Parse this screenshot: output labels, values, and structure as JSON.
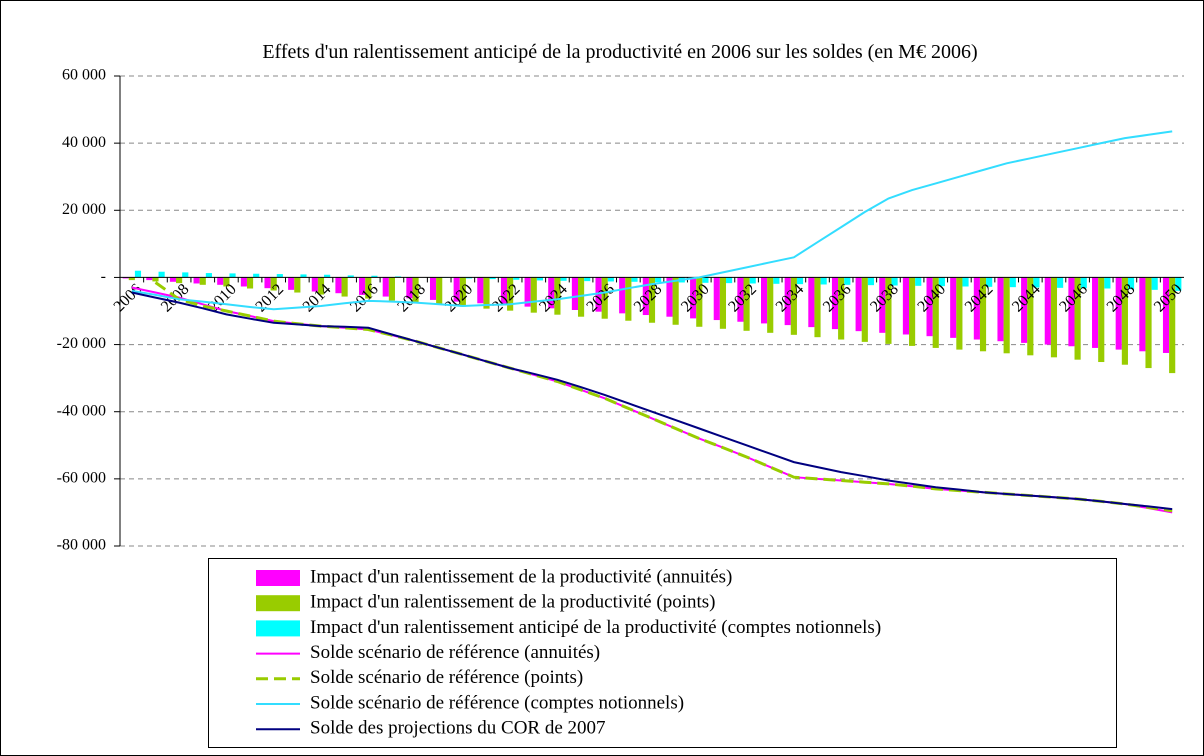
{
  "chart_data": {
    "type": "bar",
    "title": "Effets d'un ralentissement anticipé de la productivité en 2006 sur les soldes (en M€ 2006)",
    "categories": [
      "2006",
      null,
      "2008",
      null,
      "2010",
      null,
      "2012",
      null,
      "2014",
      null,
      "2016",
      null,
      "2018",
      null,
      "2020",
      null,
      "2022",
      null,
      "2024",
      null,
      "2026",
      null,
      "2028",
      null,
      "2030",
      null,
      "2032",
      null,
      "2034",
      null,
      "2036",
      null,
      "2038",
      null,
      "2040",
      null,
      "2042",
      null,
      "2044",
      null,
      "2046",
      null,
      "2048",
      null,
      "2050"
    ],
    "ylim": [
      -80000,
      60000
    ],
    "yticks": [
      {
        "value": -80000,
        "label": "-80 000"
      },
      {
        "value": -60000,
        "label": "-60 000"
      },
      {
        "value": -40000,
        "label": "-40 000"
      },
      {
        "value": -20000,
        "label": "-20 000"
      },
      {
        "value": 0,
        "label": "-"
      },
      {
        "value": 20000,
        "label": "20 000"
      },
      {
        "value": 40000,
        "label": "40 000"
      },
      {
        "value": 60000,
        "label": "60 000"
      }
    ],
    "grid": true,
    "legend": "bottom",
    "series": [
      {
        "name": "Impact d'un ralentissement de la productivité (annuités)",
        "type": "bar",
        "color": "#ff00ff",
        "values": [
          -300,
          -800,
          -1300,
          -1800,
          -2200,
          -2700,
          -3200,
          -3700,
          -4200,
          -4700,
          -5200,
          -5700,
          -6200,
          -6700,
          -7200,
          -7700,
          -8200,
          -8700,
          -9200,
          -9700,
          -10200,
          -10700,
          -11200,
          -11700,
          -12200,
          -12700,
          -13200,
          -13700,
          -14200,
          -14800,
          -15400,
          -16000,
          -16500,
          -17000,
          -17500,
          -18000,
          -18500,
          -19000,
          -19500,
          -20000,
          -20500,
          -21000,
          -21500,
          -22000,
          -22500
        ]
      },
      {
        "name": "Impact d'un ralentissement de la productivité (points)",
        "type": "bar",
        "color": "#99cc00",
        "values": [
          -800,
          -1200,
          -1700,
          -2200,
          -2700,
          -3300,
          -3900,
          -4500,
          -5100,
          -5700,
          -6300,
          -6900,
          -7500,
          -8100,
          -8700,
          -9300,
          -9900,
          -10500,
          -11100,
          -11700,
          -12300,
          -12900,
          -13500,
          -14100,
          -14700,
          -15300,
          -15900,
          -16500,
          -17100,
          -17800,
          -18500,
          -19200,
          -19800,
          -20400,
          -21000,
          -21500,
          -22000,
          -22600,
          -23200,
          -23800,
          -24500,
          -25200,
          -26000,
          -27000,
          -28500
        ]
      },
      {
        "name": "Impact d'un ralentissement anticipé de la productivité (comptes notionnels)",
        "type": "bar",
        "color": "#00ffff",
        "values": [
          2000,
          1700,
          1500,
          1300,
          1200,
          1100,
          1000,
          900,
          800,
          600,
          500,
          300,
          100,
          -100,
          -300,
          -500,
          -700,
          -900,
          -1000,
          -1100,
          -1200,
          -1300,
          -1400,
          -1500,
          -1600,
          -1700,
          -1800,
          -1900,
          -2000,
          -2100,
          -2200,
          -2300,
          -2400,
          -2500,
          -2600,
          -2700,
          -2800,
          -2900,
          -3000,
          -3100,
          -3200,
          -3300,
          -3500,
          -3700,
          -4000
        ]
      },
      {
        "name": "Solde scénario de référence (annuités)",
        "type": "line",
        "color": "#ff00ff",
        "values": [
          -3000,
          -4500,
          -6000,
          -8000,
          -10000,
          -11500,
          -13000,
          -13800,
          -14500,
          -15000,
          -15500,
          -17200,
          -19000,
          -21000,
          -23000,
          -25000,
          -27000,
          -29000,
          -31000,
          -33500,
          -36000,
          -39000,
          -42000,
          -45000,
          -48000,
          -50700,
          -53500,
          -56500,
          -59500,
          -60000,
          -60500,
          -61000,
          -61500,
          -62200,
          -63000,
          -63500,
          -64000,
          -64500,
          -65000,
          -65500,
          -66000,
          -66700,
          -67500,
          -68700,
          -70000
        ]
      },
      {
        "name": "Solde scénario de référence (points)",
        "type": "line",
        "dashed": true,
        "color": "#99cc00",
        "values": [
          null,
          -1500,
          -6500,
          -8500,
          -10000,
          -11500,
          -13000,
          -13800,
          -14500,
          -15000,
          -15500,
          -17200,
          -19000,
          -21000,
          -23000,
          -25000,
          -27000,
          -29000,
          -31000,
          -33500,
          -36000,
          -39000,
          -42000,
          -45000,
          -48000,
          -50700,
          -53500,
          -56500,
          -59500,
          -60000,
          -60500,
          -61000,
          -61500,
          -62200,
          -63000,
          -63500,
          -64000,
          -64500,
          -65000,
          -65500,
          -66000,
          -66700,
          -67500,
          -68500,
          -69500
        ]
      },
      {
        "name": "Solde scénario de référence (comptes notionnels)",
        "type": "line",
        "color": "#33ddff",
        "values": [
          -4000,
          -5200,
          -6500,
          -7200,
          -8000,
          -8800,
          -9500,
          -9000,
          -8500,
          -7700,
          -7000,
          -7200,
          -7500,
          -8000,
          -8500,
          -8200,
          -8000,
          -7200,
          -6500,
          -5500,
          -4500,
          -3200,
          -2000,
          -1000,
          0,
          1500,
          3000,
          4500,
          6000,
          10500,
          15000,
          19500,
          23500,
          26000,
          28000,
          30000,
          32000,
          34000,
          35500,
          37000,
          38500,
          40000,
          41500,
          42500,
          43500
        ]
      },
      {
        "name": "Solde des projections du COR de 2007",
        "type": "line",
        "color": "#000080",
        "values": [
          -4500,
          -6000,
          -7500,
          -9200,
          -11000,
          -12300,
          -13500,
          -14000,
          -14500,
          -14700,
          -15000,
          -17000,
          -19000,
          -21000,
          -23000,
          -25000,
          -27000,
          -28700,
          -30500,
          -32700,
          -35000,
          -37500,
          -40000,
          -42500,
          -45000,
          -47500,
          -50000,
          -52500,
          -55000,
          -56500,
          -58000,
          -59200,
          -60500,
          -61500,
          -62500,
          -63200,
          -64000,
          -64500,
          -65000,
          -65500,
          -66000,
          -66700,
          -67500,
          -68200,
          -69000
        ]
      }
    ]
  }
}
